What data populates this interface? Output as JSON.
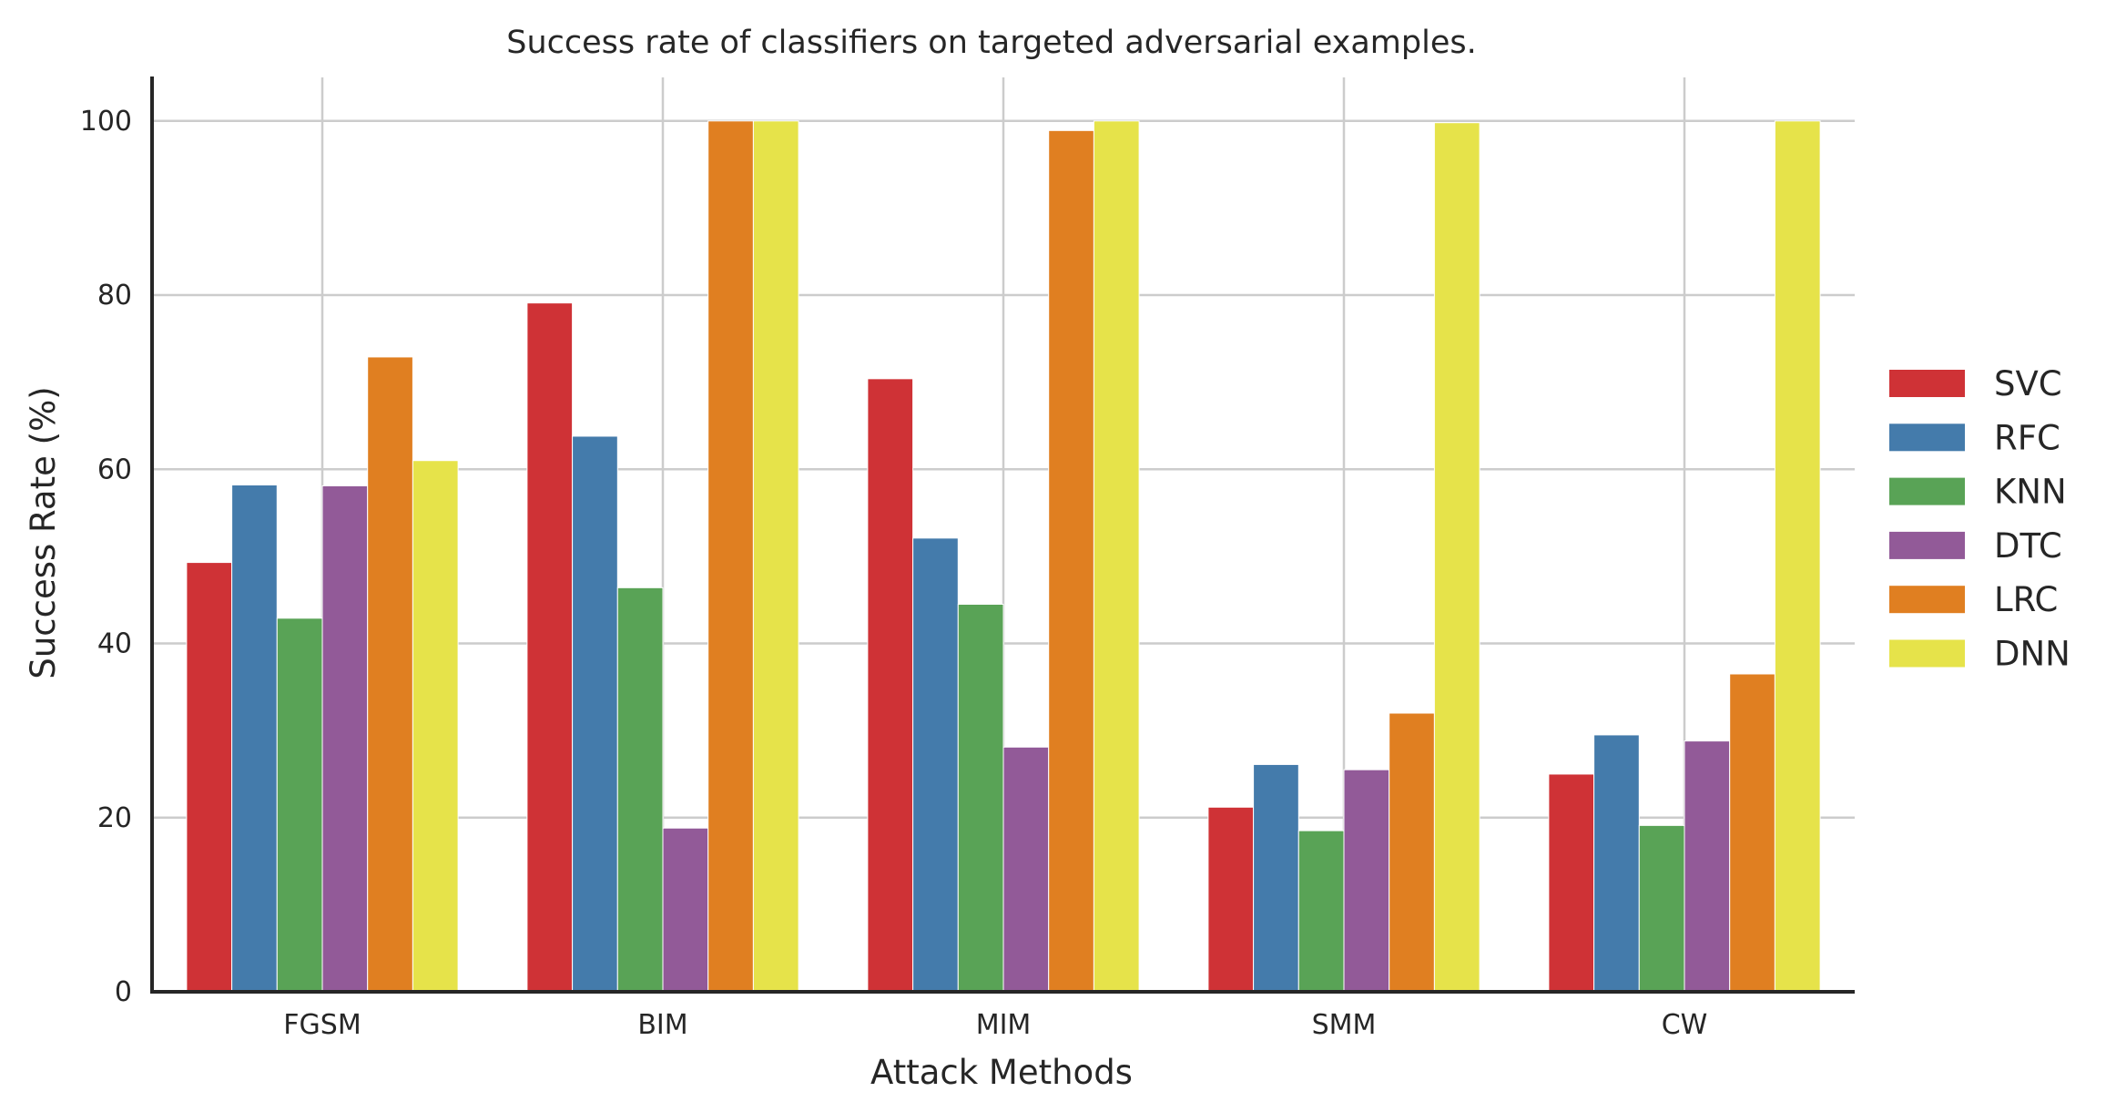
{
  "chart_data": {
    "type": "bar",
    "title": "Success rate of classifiers on targeted adversarial examples.",
    "xlabel": "Attack Methods",
    "ylabel": "Success Rate (%)",
    "categories": [
      "FGSM",
      "BIM",
      "MIM",
      "SMM",
      "CW"
    ],
    "ylim": [
      0,
      105
    ],
    "yticks": [
      0,
      20,
      40,
      60,
      80,
      100
    ],
    "grid": true,
    "legend_position": "right",
    "series": [
      {
        "name": "SVC",
        "color": "#cf3236",
        "values": [
          49.3,
          79.1,
          70.4,
          21.2,
          25.0
        ]
      },
      {
        "name": "RFC",
        "color": "#447bab",
        "values": [
          58.2,
          63.8,
          52.1,
          26.1,
          29.5
        ]
      },
      {
        "name": "KNN",
        "color": "#59a356",
        "values": [
          42.9,
          46.4,
          44.5,
          18.5,
          19.1
        ]
      },
      {
        "name": "DTC",
        "color": "#925a98",
        "values": [
          58.1,
          18.8,
          28.1,
          25.5,
          28.8
        ]
      },
      {
        "name": "LRC",
        "color": "#e07f21",
        "values": [
          72.9,
          100.0,
          98.9,
          32.0,
          36.5
        ]
      },
      {
        "name": "DNN",
        "color": "#e6e34a",
        "values": [
          61.0,
          100.0,
          100.0,
          99.8,
          100.0
        ]
      }
    ]
  }
}
